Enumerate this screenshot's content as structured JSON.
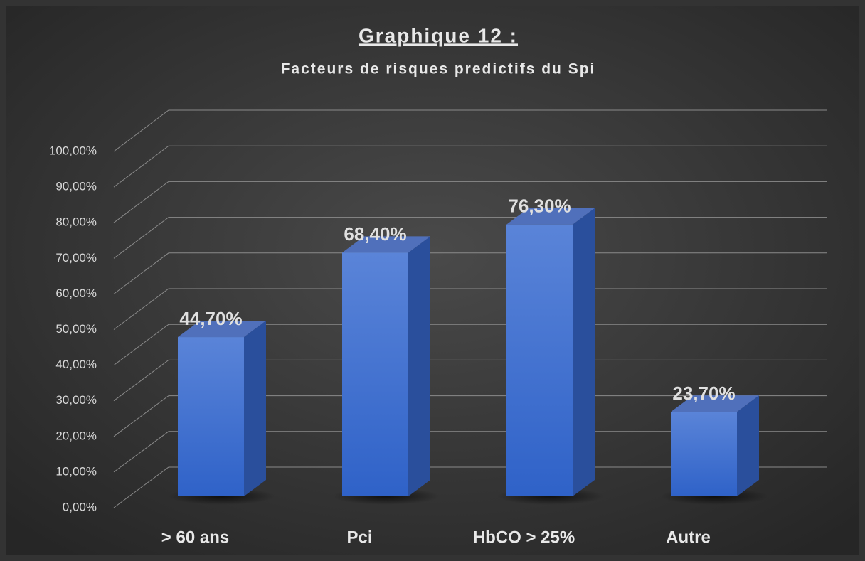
{
  "chart_data": {
    "type": "bar3d",
    "title": "Graphique 12 :",
    "subtitle": "Facteurs de risques predictifs du Spi",
    "categories": [
      "> 60 ans",
      "Pci",
      "HbCO > 25%",
      "Autre"
    ],
    "values": [
      44.7,
      68.4,
      76.3,
      23.7
    ],
    "value_labels": [
      "44,70%",
      "68,40%",
      "76,30%",
      "23,70%"
    ],
    "color": "#3d6fd0",
    "ylim": [
      0,
      100
    ],
    "yticks": [
      {
        "value": 0,
        "label": "0,00%"
      },
      {
        "value": 10,
        "label": "10,00%"
      },
      {
        "value": 20,
        "label": "20,00%"
      },
      {
        "value": 30,
        "label": "30,00%"
      },
      {
        "value": 40,
        "label": "40,00%"
      },
      {
        "value": 50,
        "label": "50,00%"
      },
      {
        "value": 60,
        "label": "60,00%"
      },
      {
        "value": 70,
        "label": "70,00%"
      },
      {
        "value": 80,
        "label": "80,00%"
      },
      {
        "value": 90,
        "label": "90,00%"
      },
      {
        "value": 100,
        "label": "100,00%"
      }
    ],
    "grid": true
  }
}
